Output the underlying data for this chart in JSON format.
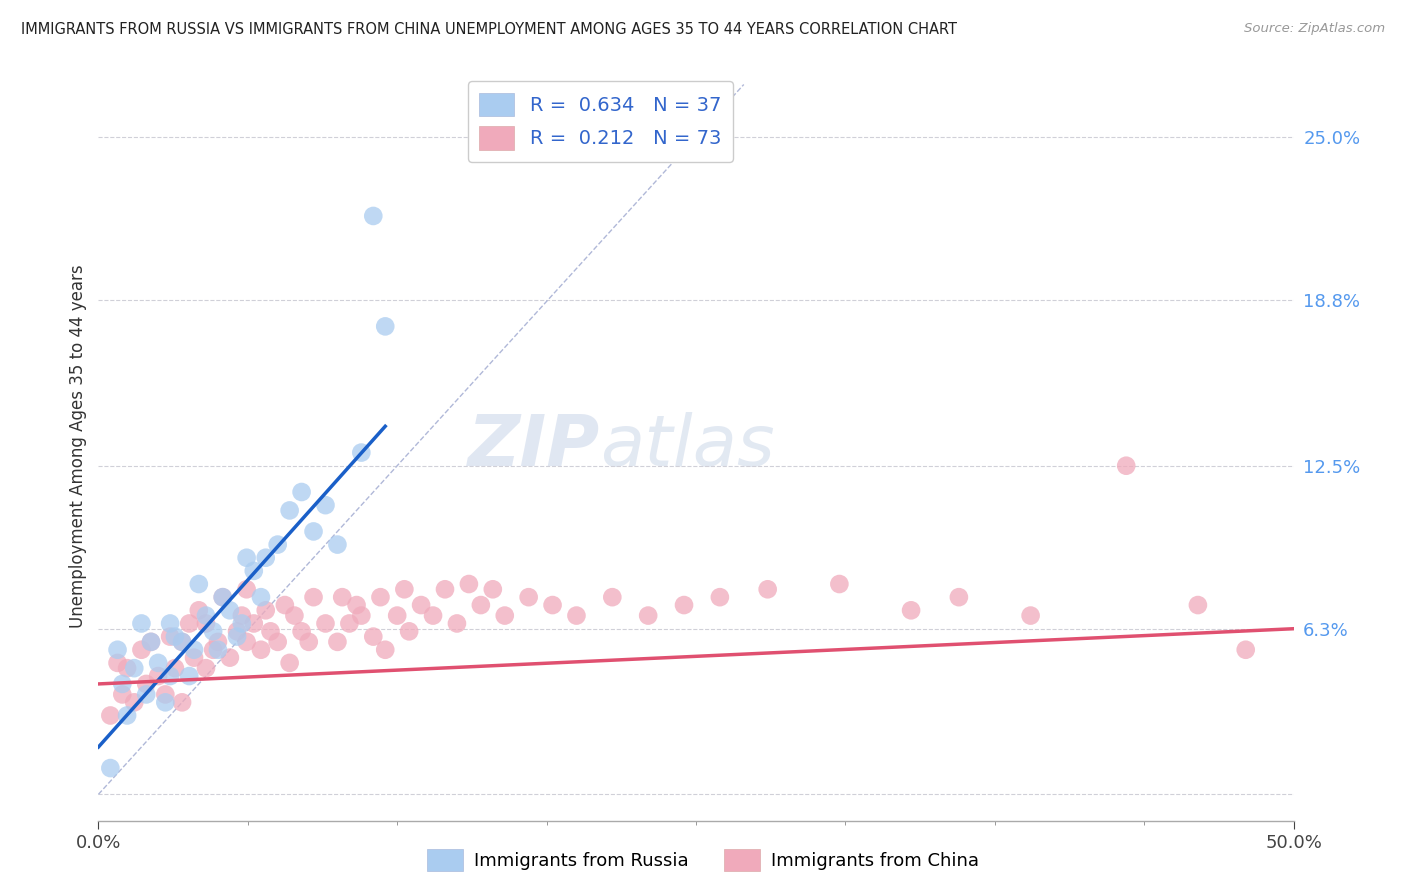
{
  "title": "IMMIGRANTS FROM RUSSIA VS IMMIGRANTS FROM CHINA UNEMPLOYMENT AMONG AGES 35 TO 44 YEARS CORRELATION CHART",
  "source": "Source: ZipAtlas.com",
  "ylabel": "Unemployment Among Ages 35 to 44 years",
  "xlim": [
    0.0,
    0.5
  ],
  "ylim": [
    -0.01,
    0.275
  ],
  "yticks": [
    0.0,
    0.063,
    0.125,
    0.188,
    0.25
  ],
  "ytick_labels": [
    "",
    "6.3%",
    "12.5%",
    "18.8%",
    "25.0%"
  ],
  "r_russia": 0.634,
  "n_russia": 37,
  "r_china": 0.212,
  "n_china": 73,
  "color_russia": "#aaccf0",
  "color_china": "#f0aabb",
  "line_color_russia": "#1a5fc8",
  "line_color_china": "#e05070",
  "diagonal_color": "#b0b8d8",
  "watermark_zip": "ZIP",
  "watermark_atlas": "atlas",
  "russia_x": [
    0.005,
    0.008,
    0.01,
    0.012,
    0.015,
    0.018,
    0.02,
    0.022,
    0.025,
    0.028,
    0.03,
    0.03,
    0.032,
    0.035,
    0.038,
    0.04,
    0.042,
    0.045,
    0.048,
    0.05,
    0.052,
    0.055,
    0.058,
    0.06,
    0.062,
    0.065,
    0.068,
    0.07,
    0.075,
    0.08,
    0.085,
    0.09,
    0.095,
    0.1,
    0.11,
    0.115,
    0.12
  ],
  "russia_y": [
    0.01,
    0.055,
    0.042,
    0.03,
    0.048,
    0.065,
    0.038,
    0.058,
    0.05,
    0.035,
    0.045,
    0.065,
    0.06,
    0.058,
    0.045,
    0.055,
    0.08,
    0.068,
    0.062,
    0.055,
    0.075,
    0.07,
    0.06,
    0.065,
    0.09,
    0.085,
    0.075,
    0.09,
    0.095,
    0.108,
    0.115,
    0.1,
    0.11,
    0.095,
    0.13,
    0.22,
    0.178
  ],
  "china_x": [
    0.005,
    0.008,
    0.01,
    0.012,
    0.015,
    0.018,
    0.02,
    0.022,
    0.025,
    0.028,
    0.03,
    0.032,
    0.035,
    0.035,
    0.038,
    0.04,
    0.042,
    0.045,
    0.045,
    0.048,
    0.05,
    0.052,
    0.055,
    0.058,
    0.06,
    0.062,
    0.062,
    0.065,
    0.068,
    0.07,
    0.072,
    0.075,
    0.078,
    0.08,
    0.082,
    0.085,
    0.088,
    0.09,
    0.095,
    0.1,
    0.102,
    0.105,
    0.108,
    0.11,
    0.115,
    0.118,
    0.12,
    0.125,
    0.128,
    0.13,
    0.135,
    0.14,
    0.145,
    0.15,
    0.155,
    0.16,
    0.165,
    0.17,
    0.18,
    0.19,
    0.2,
    0.215,
    0.23,
    0.245,
    0.26,
    0.28,
    0.31,
    0.34,
    0.36,
    0.39,
    0.43,
    0.46,
    0.48
  ],
  "china_y": [
    0.03,
    0.05,
    0.038,
    0.048,
    0.035,
    0.055,
    0.042,
    0.058,
    0.045,
    0.038,
    0.06,
    0.048,
    0.058,
    0.035,
    0.065,
    0.052,
    0.07,
    0.048,
    0.065,
    0.055,
    0.058,
    0.075,
    0.052,
    0.062,
    0.068,
    0.058,
    0.078,
    0.065,
    0.055,
    0.07,
    0.062,
    0.058,
    0.072,
    0.05,
    0.068,
    0.062,
    0.058,
    0.075,
    0.065,
    0.058,
    0.075,
    0.065,
    0.072,
    0.068,
    0.06,
    0.075,
    0.055,
    0.068,
    0.078,
    0.062,
    0.072,
    0.068,
    0.078,
    0.065,
    0.08,
    0.072,
    0.078,
    0.068,
    0.075,
    0.072,
    0.068,
    0.075,
    0.068,
    0.072,
    0.075,
    0.078,
    0.08,
    0.07,
    0.075,
    0.068,
    0.125,
    0.072,
    0.055
  ]
}
